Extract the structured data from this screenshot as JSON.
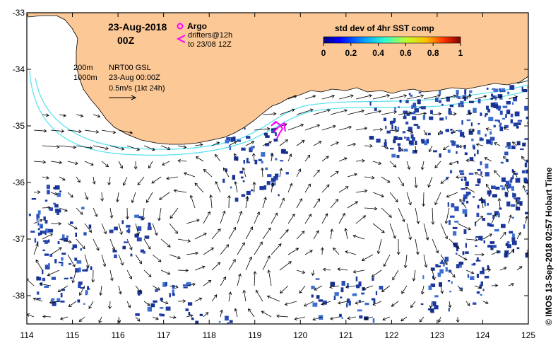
{
  "map": {
    "date": "23-Aug-2018",
    "time": "00Z",
    "legend_argo": "Argo",
    "legend_drifters_line1": "drifters@12h",
    "legend_drifters_line2": "to 23/08 12Z",
    "contour_200": "200m",
    "contour_1000": "1000m",
    "product": "NRT00 GSL",
    "product_time": "23-Aug 00:00Z",
    "scale_label": "0.5m/s (1kt 24h)",
    "colorbar_title": "std dev of 4hr SST comp",
    "colorbar_ticks": [
      "0",
      "0.2",
      "0.4",
      "0.6",
      "0.8",
      "1"
    ],
    "credit": "© IMOS 13-Sep-2018 02:57 Hobart Time",
    "colors": {
      "land": "#fcc896",
      "sst_patch": "#1e3c9b",
      "contour": "#55e1f0",
      "argo": "#ff00ff"
    },
    "lon_ticks": [
      "114",
      "115",
      "116",
      "117",
      "118",
      "119",
      "120",
      "121",
      "122",
      "123",
      "124",
      "125"
    ],
    "lat_ticks": [
      "-33",
      "-34",
      "-35",
      "-36",
      "-37",
      "-38"
    ],
    "lon_range": [
      114,
      125
    ],
    "lat_range": [
      -38.5,
      -33
    ]
  }
}
